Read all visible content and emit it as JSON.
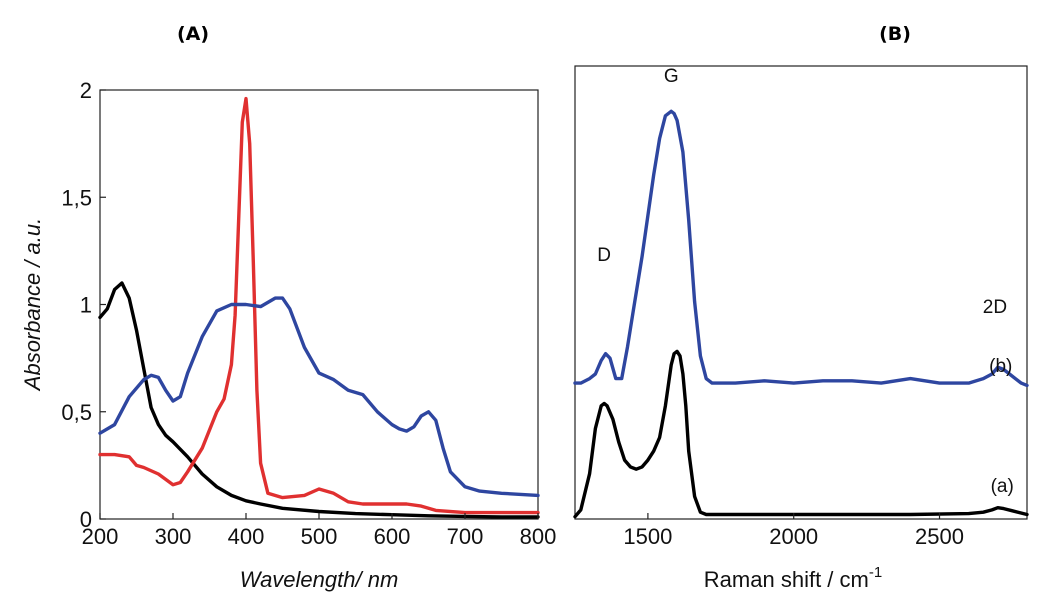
{
  "chart_data": [
    {
      "type": "line",
      "panel_label": "(A)",
      "xlabel": "Wavelength/ nm",
      "ylabel": "Absorbance / a.u.",
      "xlim": [
        200,
        800
      ],
      "ylim": [
        0,
        2
      ],
      "xticks": [
        {
          "value": 200,
          "label": "200"
        },
        {
          "value": 300,
          "label": "300"
        },
        {
          "value": 400,
          "label": "400"
        },
        {
          "value": 500,
          "label": "500"
        },
        {
          "value": 600,
          "label": "600"
        },
        {
          "value": 700,
          "label": "700"
        },
        {
          "value": 800,
          "label": "800"
        }
      ],
      "yticks": [
        {
          "value": 0,
          "label": "0"
        },
        {
          "value": 0.5,
          "label": "0,5"
        },
        {
          "value": 1,
          "label": "1"
        },
        {
          "value": 1.5,
          "label": "1,5"
        },
        {
          "value": 2,
          "label": "2"
        }
      ],
      "grid": false,
      "series": [
        {
          "color": "#000000",
          "x": [
            200,
            210,
            220,
            230,
            240,
            250,
            260,
            270,
            280,
            290,
            300,
            320,
            340,
            360,
            380,
            400,
            420,
            450,
            500,
            550,
            600,
            650,
            700,
            750,
            800
          ],
          "y": [
            0.94,
            0.98,
            1.07,
            1.1,
            1.03,
            0.88,
            0.7,
            0.52,
            0.44,
            0.39,
            0.36,
            0.29,
            0.21,
            0.15,
            0.11,
            0.085,
            0.07,
            0.05,
            0.035,
            0.025,
            0.02,
            0.015,
            0.012,
            0.01,
            0.01
          ]
        },
        {
          "color": "#e03030",
          "x": [
            200,
            220,
            240,
            250,
            260,
            280,
            300,
            310,
            320,
            340,
            360,
            370,
            380,
            385,
            390,
            395,
            400,
            405,
            410,
            415,
            420,
            430,
            450,
            480,
            500,
            520,
            540,
            560,
            600,
            620,
            640,
            660,
            700,
            750,
            800
          ],
          "y": [
            0.3,
            0.3,
            0.29,
            0.25,
            0.24,
            0.21,
            0.16,
            0.17,
            0.22,
            0.33,
            0.5,
            0.56,
            0.72,
            0.95,
            1.4,
            1.85,
            1.96,
            1.75,
            1.2,
            0.6,
            0.26,
            0.12,
            0.1,
            0.11,
            0.14,
            0.12,
            0.08,
            0.07,
            0.07,
            0.07,
            0.06,
            0.04,
            0.03,
            0.03,
            0.03
          ]
        },
        {
          "color": "#2e46a0",
          "x": [
            200,
            220,
            240,
            260,
            270,
            280,
            290,
            300,
            310,
            320,
            340,
            360,
            380,
            400,
            420,
            440,
            450,
            460,
            480,
            500,
            520,
            540,
            560,
            580,
            600,
            610,
            620,
            630,
            640,
            650,
            660,
            670,
            680,
            700,
            720,
            750,
            800
          ],
          "y": [
            0.4,
            0.44,
            0.57,
            0.65,
            0.67,
            0.66,
            0.6,
            0.55,
            0.57,
            0.68,
            0.85,
            0.97,
            1.0,
            1.0,
            0.99,
            1.03,
            1.03,
            0.98,
            0.8,
            0.68,
            0.65,
            0.6,
            0.58,
            0.5,
            0.44,
            0.42,
            0.41,
            0.43,
            0.48,
            0.5,
            0.46,
            0.33,
            0.22,
            0.15,
            0.13,
            0.12,
            0.11
          ]
        }
      ]
    },
    {
      "type": "line",
      "panel_label": "(B)",
      "xlabel": "Raman shift / cm",
      "xlabel_superscript": "-1",
      "ylabel": "",
      "xlim": [
        1250,
        2800
      ],
      "ylim": [
        0,
        1
      ],
      "xticks": [
        {
          "value": 1500,
          "label": "1500"
        },
        {
          "value": 2000,
          "label": "2000"
        },
        {
          "value": 2500,
          "label": "2500"
        }
      ],
      "yticks": [],
      "grid": false,
      "annotations": [
        {
          "text": "G",
          "x": 1580,
          "y": 0.965
        },
        {
          "text": "D",
          "x": 1350,
          "y": 0.57
        },
        {
          "text": "2D",
          "x": 2690,
          "y": 0.455
        },
        {
          "text": "(b)",
          "x": 2710,
          "y": 0.325
        },
        {
          "text": "(a)",
          "x": 2715,
          "y": 0.06
        }
      ],
      "series": [
        {
          "color": "#000000",
          "x": [
            1250,
            1270,
            1300,
            1320,
            1340,
            1350,
            1360,
            1380,
            1400,
            1420,
            1440,
            1460,
            1480,
            1500,
            1520,
            1540,
            1560,
            1580,
            1590,
            1600,
            1610,
            1620,
            1630,
            1640,
            1660,
            1680,
            1700,
            1750,
            1800,
            2000,
            2200,
            2400,
            2600,
            2650,
            2680,
            2700,
            2720,
            2750,
            2800
          ],
          "y": [
            0.005,
            0.02,
            0.1,
            0.2,
            0.25,
            0.255,
            0.25,
            0.22,
            0.17,
            0.13,
            0.115,
            0.11,
            0.115,
            0.13,
            0.15,
            0.18,
            0.25,
            0.34,
            0.365,
            0.37,
            0.36,
            0.32,
            0.25,
            0.15,
            0.05,
            0.015,
            0.01,
            0.01,
            0.01,
            0.01,
            0.01,
            0.01,
            0.012,
            0.015,
            0.02,
            0.025,
            0.023,
            0.018,
            0.01
          ]
        },
        {
          "color": "#2e46a0",
          "x": [
            1250,
            1270,
            1300,
            1320,
            1340,
            1355,
            1370,
            1390,
            1410,
            1430,
            1450,
            1480,
            1500,
            1520,
            1540,
            1560,
            1580,
            1590,
            1600,
            1620,
            1640,
            1660,
            1680,
            1700,
            1720,
            1750,
            1800,
            1900,
            2000,
            2100,
            2200,
            2300,
            2400,
            2500,
            2600,
            2650,
            2680,
            2700,
            2720,
            2740,
            2760,
            2780,
            2800
          ],
          "y": [
            0.3,
            0.3,
            0.31,
            0.32,
            0.35,
            0.365,
            0.355,
            0.31,
            0.31,
            0.38,
            0.46,
            0.58,
            0.67,
            0.76,
            0.84,
            0.89,
            0.9,
            0.895,
            0.88,
            0.81,
            0.66,
            0.48,
            0.36,
            0.31,
            0.3,
            0.3,
            0.3,
            0.305,
            0.3,
            0.305,
            0.305,
            0.3,
            0.31,
            0.3,
            0.3,
            0.31,
            0.32,
            0.335,
            0.33,
            0.32,
            0.31,
            0.3,
            0.295
          ]
        }
      ]
    }
  ]
}
